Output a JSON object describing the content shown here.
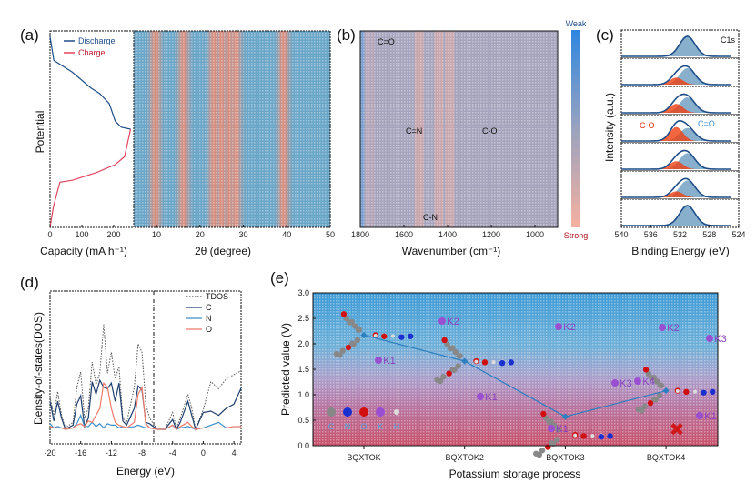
{
  "panels": {
    "a": {
      "label": "(a)",
      "legend": [
        "Discharge",
        "Charge"
      ],
      "ylabel": "Potential",
      "xlabel_left": "Capacity (mA h⁻¹)",
      "xlabel_right": "2θ (degree)"
    },
    "b": {
      "label": "(b)",
      "annotations": [
        "C=O",
        "C=N",
        "C-O",
        "C-N"
      ],
      "xlabel": "Wavenumber (cm⁻¹)",
      "colorbar_top": "Weak",
      "colorbar_bottom": "Strong"
    },
    "c": {
      "label": "(c)",
      "tag": "C1s",
      "annot_co": "C-O",
      "annot_cdo": "C=O",
      "ylabel": "Intensity (a.u.)",
      "xlabel": "Binding Energy (eV)"
    },
    "d": {
      "label": "(d)",
      "ylabel": "Density-of-states(DOS)",
      "xlabel": "Energy (eV)"
    },
    "e": {
      "label": "(e)",
      "ylabel": "Predicted value (V)",
      "xlabel": "Potassium storage process",
      "atom_legend": [
        "C",
        "N",
        "O",
        "K",
        "H"
      ],
      "k_labels": [
        "K1",
        "K2",
        "K1",
        "K2",
        "K3",
        "K1",
        "K2",
        "K3",
        "K4",
        "K1"
      ],
      "fail_mark": "✖"
    }
  },
  "colors": {
    "discharge": "#1f4e89",
    "charge": "#e0455e",
    "tdos": "#555555",
    "c": "#1f3f6e",
    "n": "#3d8fc8",
    "o": "#f07a6a",
    "line_e": "#2a7fc0",
    "atom_C": "#888888",
    "atom_N": "#1a2fd0",
    "atom_O": "#d01010",
    "atom_K": "#9a4fd0",
    "atom_H": "#dddddd",
    "fail": "#d01818"
  },
  "chart_data": [
    {
      "panel": "a-left",
      "type": "line",
      "xlabel": "Capacity (mA h⁻¹)",
      "ylabel": "Potential",
      "xticks": [
        0,
        100,
        200
      ],
      "xlim": [
        0,
        263
      ],
      "series": [
        {
          "name": "Discharge",
          "x": [
            0,
            12,
            70,
            128,
            157,
            186,
            205,
            224,
            253
          ],
          "y": [
            0.97,
            0.85,
            0.79,
            0.71,
            0.68,
            0.63,
            0.54,
            0.51,
            0.5
          ]
        },
        {
          "name": "Charge",
          "x": [
            253,
            234,
            205,
            147,
            70,
            31,
            21,
            10,
            0
          ],
          "y": [
            0.5,
            0.36,
            0.32,
            0.28,
            0.24,
            0.23,
            0.17,
            0.1,
            0.0
          ]
        }
      ]
    },
    {
      "panel": "a-right",
      "type": "heatmap",
      "xlabel": "2θ (degree)",
      "xticks": [
        10,
        20,
        30,
        40,
        50
      ],
      "xlim": [
        4.8,
        50
      ],
      "strong_bands_2theta": [
        9.5,
        16,
        23,
        24.7,
        26.4,
        28,
        39
      ]
    },
    {
      "panel": "b",
      "type": "heatmap",
      "xlabel": "Wavenumber (cm⁻¹)",
      "xticks": [
        1800,
        1600,
        1400,
        1200,
        1000
      ],
      "xlim": [
        1800,
        896
      ],
      "strong_bands_cm": [
        1760,
        1530,
        1440,
        1390
      ],
      "colorbar": [
        "Weak",
        "Strong"
      ]
    },
    {
      "panel": "c",
      "type": "line",
      "xlabel": "Binding Energy (eV)",
      "ylabel": "Intensity (a.u.)",
      "xticks": [
        540,
        536,
        532,
        528,
        524
      ],
      "xlim": [
        540,
        524
      ],
      "spectra_count": 7,
      "peak_C_dbl_O_eV": 531,
      "peak_C_O_eV": 532.5,
      "C_O_fraction": [
        0,
        0.35,
        0.45,
        0.7,
        0.4,
        0.3,
        0
      ]
    },
    {
      "panel": "d",
      "type": "line",
      "xlabel": "Energy (eV)",
      "ylabel": "Density-of-states(DOS)",
      "xticks": [
        -20,
        -16,
        -12,
        -8,
        -4,
        0,
        4
      ],
      "xlim": [
        -20,
        5
      ],
      "fermi_marker_eV": -6.5,
      "x": [
        -20,
        -19.5,
        -19,
        -18.5,
        -18,
        -17,
        -16.5,
        -16,
        -15.5,
        -15,
        -14.5,
        -14,
        -13.5,
        -13,
        -12.5,
        -12,
        -11.5,
        -11,
        -10.5,
        -10,
        -9,
        -8.5,
        -8,
        -7.5,
        -7,
        -6,
        -5,
        -4,
        -3.5,
        -3,
        -2,
        -1.5,
        -1,
        0,
        1,
        2,
        3,
        4,
        5
      ],
      "series": [
        {
          "name": "TDOS",
          "y": [
            2.3,
            1.0,
            2.7,
            1.0,
            0.1,
            0.5,
            3.0,
            4.1,
            0.8,
            1.5,
            4.8,
            3.2,
            4.0,
            7.5,
            4.0,
            5.5,
            3.6,
            4.5,
            0.8,
            0.5,
            3.0,
            6.1,
            5.5,
            1.8,
            0.8,
            0.0,
            0.0,
            1.2,
            0.1,
            0.8,
            2.5,
            1.5,
            0.0,
            1.4,
            3.4,
            2.9,
            3.6,
            3.9,
            4.2
          ]
        },
        {
          "name": "C",
          "y": [
            2.0,
            0.6,
            2.0,
            0.8,
            0.0,
            0.3,
            1.8,
            2.4,
            0.2,
            0.8,
            3.4,
            2.5,
            3.5,
            3.0,
            2.9,
            3.3,
            2.0,
            3.3,
            0.6,
            0.3,
            1.5,
            3.1,
            2.8,
            0.5,
            0.4,
            0.0,
            0.0,
            0.7,
            0.0,
            0.5,
            2.0,
            1.0,
            0.0,
            1.2,
            1.3,
            1.0,
            1.5,
            1.8,
            3.0
          ]
        },
        {
          "name": "N",
          "y": [
            0.4,
            0.1,
            0.2,
            0.1,
            0.0,
            0.1,
            0.4,
            1.0,
            0.2,
            0.2,
            0.5,
            0.2,
            0.4,
            0.1,
            0.4,
            0.3,
            0.3,
            0.1,
            0.2,
            0.1,
            0.2,
            0.3,
            0.2,
            0.1,
            0.1,
            0.0,
            0.0,
            0.3,
            0.0,
            0.1,
            0.2,
            0.1,
            0.0,
            0.1,
            0.3,
            0.5,
            0.1,
            0.1,
            0.1
          ]
        },
        {
          "name": "O",
          "y": [
            0.2,
            0.1,
            0.1,
            0.1,
            0.0,
            0.1,
            0.3,
            0.4,
            0.2,
            0.6,
            0.5,
            1.0,
            1.5,
            3.3,
            3.0,
            1.5,
            0.5,
            0.3,
            0.2,
            0.1,
            0.5,
            2.5,
            3.0,
            0.4,
            0.1,
            0.0,
            0.0,
            0.3,
            0.0,
            0.2,
            0.5,
            0.2,
            0.0,
            0.1,
            0.1,
            0.1,
            0.1,
            0.2,
            0.2
          ]
        }
      ]
    },
    {
      "panel": "e",
      "type": "line",
      "xlabel": "Potassium storage process",
      "ylabel": "Predicted value (V)",
      "ylim": [
        0,
        3.0
      ],
      "yticks": [
        0.0,
        0.5,
        1.0,
        1.5,
        2.0,
        2.5,
        3.0
      ],
      "categories": [
        "BQXTOK",
        "BQXTOK2",
        "BQXTOK3",
        "BQXTOK4"
      ],
      "values": [
        2.17,
        1.66,
        0.57,
        1.08
      ]
    }
  ]
}
